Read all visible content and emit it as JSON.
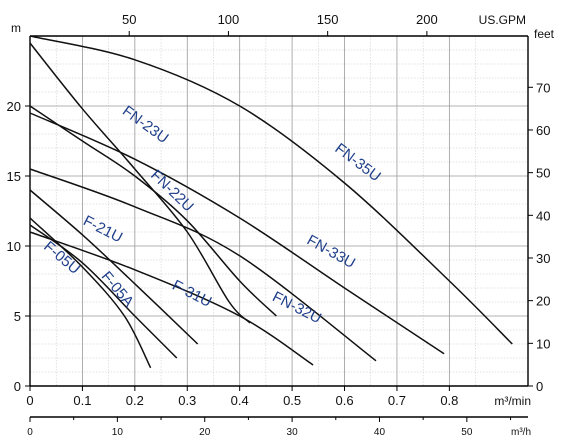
{
  "chart_data": {
    "type": "line",
    "title": "",
    "units": {
      "left": "m",
      "right": "feet",
      "bottom": "m³/min",
      "bottom2": "m³/h",
      "top": "US.GPM"
    },
    "axes": {
      "bottom": {
        "range": [
          0,
          0.95
        ],
        "ticks": [
          0,
          0.1,
          0.2,
          0.3,
          0.4,
          0.5,
          0.6,
          0.7,
          0.8
        ],
        "tick_labels": [
          "0",
          "0.1",
          "0.2",
          "0.3",
          "0.4",
          "0.5",
          "0.6",
          "0.7",
          "0.8"
        ]
      },
      "bottom2": {
        "ticks": [
          0,
          10,
          20,
          30,
          40,
          50
        ],
        "tick_labels": [
          "0",
          "10",
          "20",
          "30",
          "40",
          "50"
        ]
      },
      "left": {
        "range": [
          0,
          25
        ],
        "ticks": [
          0,
          5,
          10,
          15,
          20
        ],
        "tick_labels": [
          "0",
          "5",
          "10",
          "15",
          "20"
        ]
      },
      "right": {
        "ticks": [
          0,
          10,
          20,
          30,
          40,
          50,
          60,
          70
        ],
        "tick_labels": [
          "0",
          "10",
          "20",
          "30",
          "40",
          "50",
          "60",
          "70"
        ]
      },
      "top": {
        "ticks": [
          50,
          100,
          150,
          200
        ],
        "tick_labels": [
          "50",
          "100",
          "150",
          "200"
        ]
      }
    },
    "grid": true,
    "series": [
      {
        "name": "FN-35U",
        "points": [
          [
            0.0,
            25.0
          ],
          [
            0.2,
            23.3
          ],
          [
            0.4,
            20.0
          ],
          [
            0.6,
            14.5
          ],
          [
            0.8,
            7.5
          ],
          [
            0.92,
            3.0
          ]
        ]
      },
      {
        "name": "FN-23U",
        "points": [
          [
            0.0,
            24.5
          ],
          [
            0.1,
            19.8
          ],
          [
            0.2,
            15.5
          ],
          [
            0.3,
            11.0
          ],
          [
            0.38,
            6.0
          ],
          [
            0.42,
            4.5
          ]
        ]
      },
      {
        "name": "FN-22U",
        "points": [
          [
            0.0,
            20.0
          ],
          [
            0.1,
            17.5
          ],
          [
            0.2,
            15.0
          ],
          [
            0.3,
            11.8
          ],
          [
            0.4,
            7.5
          ],
          [
            0.47,
            5.0
          ]
        ]
      },
      {
        "name": "FN-33U",
        "points": [
          [
            0.0,
            19.5
          ],
          [
            0.2,
            16.2
          ],
          [
            0.4,
            12.0
          ],
          [
            0.6,
            7.0
          ],
          [
            0.79,
            2.3
          ]
        ]
      },
      {
        "name": "FN-32U",
        "points": [
          [
            0.0,
            15.5
          ],
          [
            0.2,
            12.8
          ],
          [
            0.4,
            9.3
          ],
          [
            0.66,
            1.8
          ]
        ]
      },
      {
        "name": "F-21U",
        "points": [
          [
            0.0,
            14.0
          ],
          [
            0.1,
            10.8
          ],
          [
            0.2,
            7.3
          ],
          [
            0.32,
            3.0
          ]
        ]
      },
      {
        "name": "F-31U",
        "points": [
          [
            0.0,
            11.0
          ],
          [
            0.2,
            8.3
          ],
          [
            0.4,
            5.0
          ],
          [
            0.54,
            1.5
          ]
        ]
      },
      {
        "name": "F-05U",
        "points": [
          [
            0.0,
            12.0
          ],
          [
            0.1,
            8.5
          ],
          [
            0.18,
            5.0
          ],
          [
            0.23,
            1.3
          ]
        ]
      },
      {
        "name": "F-05A",
        "points": [
          [
            0.0,
            11.5
          ],
          [
            0.1,
            8.8
          ],
          [
            0.2,
            5.0
          ],
          [
            0.28,
            2.0
          ]
        ]
      }
    ]
  }
}
